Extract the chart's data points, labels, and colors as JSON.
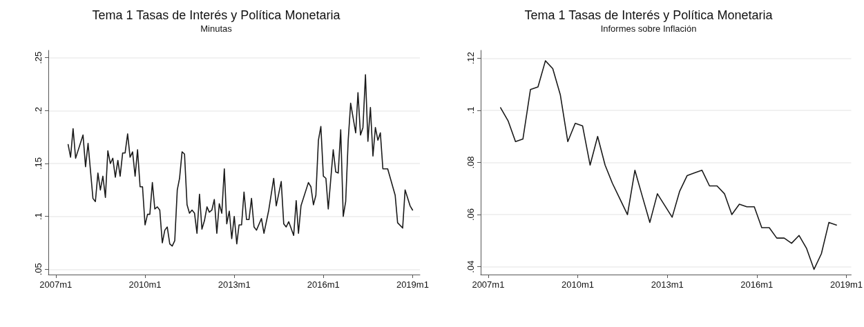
{
  "chart_data": [
    {
      "type": "line",
      "title": "Tema 1 Tasas de Interés y Política Monetaria",
      "subtitle": "Minutas",
      "grid": "y",
      "marker": "none",
      "line_style": "solid",
      "xlim": [
        "2006-10",
        "2019-04"
      ],
      "ylim": [
        0.045,
        0.257
      ],
      "xticks": [
        {
          "value": "2007-01",
          "label": "2007m1"
        },
        {
          "value": "2010-01",
          "label": "2010m1"
        },
        {
          "value": "2013-01",
          "label": "2013m1"
        },
        {
          "value": "2016-01",
          "label": "2016m1"
        },
        {
          "value": "2019-01",
          "label": "2019m1"
        }
      ],
      "yticks": [
        {
          "value": 0.05,
          "label": ".05"
        },
        {
          "value": 0.1,
          "label": ".1"
        },
        {
          "value": 0.15,
          "label": ".15"
        },
        {
          "value": 0.2,
          "label": ".2"
        },
        {
          "value": 0.25,
          "label": ".25"
        }
      ],
      "series": [
        {
          "color": "#1a1a1a",
          "x": [
            "2007-06",
            "2007-07",
            "2007-08",
            "2007-09",
            "2007-12",
            "2008-01",
            "2008-02",
            "2008-04",
            "2008-05",
            "2008-06",
            "2008-07",
            "2008-08",
            "2008-09",
            "2008-10",
            "2008-11",
            "2008-12",
            "2009-01",
            "2009-02",
            "2009-03",
            "2009-04",
            "2009-05",
            "2009-06",
            "2009-07",
            "2009-08",
            "2009-09",
            "2009-10",
            "2009-11",
            "2009-12",
            "2010-01",
            "2010-02",
            "2010-03",
            "2010-04",
            "2010-05",
            "2010-06",
            "2010-07",
            "2010-08",
            "2010-09",
            "2010-10",
            "2010-11",
            "2010-12",
            "2011-01",
            "2011-02",
            "2011-03",
            "2011-04",
            "2011-05",
            "2011-06",
            "2011-07",
            "2011-08",
            "2011-09",
            "2011-10",
            "2011-11",
            "2011-12",
            "2012-01",
            "2012-02",
            "2012-03",
            "2012-04",
            "2012-05",
            "2012-06",
            "2012-07",
            "2012-08",
            "2012-09",
            "2012-10",
            "2012-11",
            "2012-12",
            "2013-01",
            "2013-02",
            "2013-03",
            "2013-04",
            "2013-05",
            "2013-06",
            "2013-07",
            "2013-08",
            "2013-09",
            "2013-10",
            "2013-12",
            "2014-01",
            "2014-03",
            "2014-05",
            "2014-06",
            "2014-08",
            "2014-09",
            "2014-10",
            "2014-11",
            "2015-01",
            "2015-02",
            "2015-03",
            "2015-04",
            "2015-07",
            "2015-08",
            "2015-09",
            "2015-10",
            "2015-11",
            "2015-12",
            "2016-01",
            "2016-02",
            "2016-03",
            "2016-05",
            "2016-06",
            "2016-07",
            "2016-08",
            "2016-09",
            "2016-10",
            "2016-11",
            "2016-12",
            "2017-02",
            "2017-03",
            "2017-04",
            "2017-05",
            "2017-06",
            "2017-07",
            "2017-08",
            "2017-09",
            "2017-10",
            "2017-11",
            "2017-12",
            "2018-01",
            "2018-03",
            "2018-06",
            "2018-07",
            "2018-09",
            "2018-10",
            "2018-12",
            "2019-01"
          ],
          "values": [
            0.168,
            0.156,
            0.183,
            0.155,
            0.177,
            0.147,
            0.169,
            0.117,
            0.114,
            0.141,
            0.125,
            0.138,
            0.118,
            0.162,
            0.15,
            0.155,
            0.137,
            0.153,
            0.138,
            0.16,
            0.16,
            0.178,
            0.156,
            0.161,
            0.138,
            0.163,
            0.128,
            0.128,
            0.092,
            0.102,
            0.102,
            0.132,
            0.107,
            0.109,
            0.106,
            0.075,
            0.087,
            0.09,
            0.074,
            0.072,
            0.077,
            0.125,
            0.136,
            0.161,
            0.159,
            0.111,
            0.103,
            0.106,
            0.103,
            0.084,
            0.121,
            0.088,
            0.096,
            0.109,
            0.104,
            0.106,
            0.116,
            0.084,
            0.112,
            0.103,
            0.145,
            0.093,
            0.105,
            0.079,
            0.1,
            0.074,
            0.092,
            0.092,
            0.123,
            0.097,
            0.097,
            0.117,
            0.09,
            0.087,
            0.098,
            0.084,
            0.106,
            0.136,
            0.11,
            0.133,
            0.093,
            0.09,
            0.095,
            0.082,
            0.115,
            0.084,
            0.11,
            0.132,
            0.128,
            0.111,
            0.12,
            0.172,
            0.185,
            0.138,
            0.136,
            0.107,
            0.163,
            0.142,
            0.141,
            0.182,
            0.1,
            0.114,
            0.172,
            0.207,
            0.179,
            0.217,
            0.177,
            0.184,
            0.234,
            0.171,
            0.203,
            0.157,
            0.184,
            0.172,
            0.179,
            0.145,
            0.145,
            0.12,
            0.094,
            0.089,
            0.125,
            0.11,
            0.106
          ]
        }
      ]
    },
    {
      "type": "line",
      "title": "Tema 1 Tasas de Interés y Política Monetaria",
      "subtitle": "Informes sobre Inflación",
      "grid": "y",
      "marker": "none",
      "line_style": "solid",
      "xlim": [
        "2006-10",
        "2019-03"
      ],
      "ylim": [
        0.037,
        0.123
      ],
      "xticks": [
        {
          "value": "2007-01",
          "label": "2007m1"
        },
        {
          "value": "2010-01",
          "label": "2010m1"
        },
        {
          "value": "2013-01",
          "label": "2013m1"
        },
        {
          "value": "2016-01",
          "label": "2016m1"
        },
        {
          "value": "2019-01",
          "label": "2019m1"
        }
      ],
      "yticks": [
        {
          "value": 0.04,
          "label": ".04"
        },
        {
          "value": 0.06,
          "label": ".06"
        },
        {
          "value": 0.08,
          "label": ".08"
        },
        {
          "value": 0.1,
          "label": ".1"
        },
        {
          "value": 0.12,
          "label": ".12"
        }
      ],
      "series": [
        {
          "color": "#1a1a1a",
          "x": [
            "2007-06",
            "2007-09",
            "2007-12",
            "2008-03",
            "2008-06",
            "2008-09",
            "2008-12",
            "2009-03",
            "2009-06",
            "2009-09",
            "2009-12",
            "2010-03",
            "2010-06",
            "2010-09",
            "2010-12",
            "2011-03",
            "2011-06",
            "2011-09",
            "2011-12",
            "2012-03",
            "2012-06",
            "2012-09",
            "2013-03",
            "2013-06",
            "2013-09",
            "2013-12",
            "2014-03",
            "2014-06",
            "2014-09",
            "2014-12",
            "2015-03",
            "2015-06",
            "2015-09",
            "2015-12",
            "2016-03",
            "2016-06",
            "2016-09",
            "2016-12",
            "2017-03",
            "2017-06",
            "2017-09",
            "2017-12",
            "2018-03",
            "2018-06",
            "2018-09"
          ],
          "values": [
            0.101,
            0.096,
            0.088,
            0.089,
            0.108,
            0.109,
            0.119,
            0.116,
            0.106,
            0.088,
            0.095,
            0.094,
            0.079,
            0.09,
            0.079,
            0.072,
            0.066,
            0.06,
            0.077,
            0.067,
            0.057,
            0.068,
            0.059,
            0.069,
            0.075,
            0.076,
            0.077,
            0.071,
            0.071,
            0.068,
            0.06,
            0.064,
            0.063,
            0.063,
            0.055,
            0.055,
            0.051,
            0.051,
            0.049,
            0.052,
            0.047,
            0.039,
            0.045,
            0.057,
            0.056
          ]
        }
      ]
    }
  ]
}
